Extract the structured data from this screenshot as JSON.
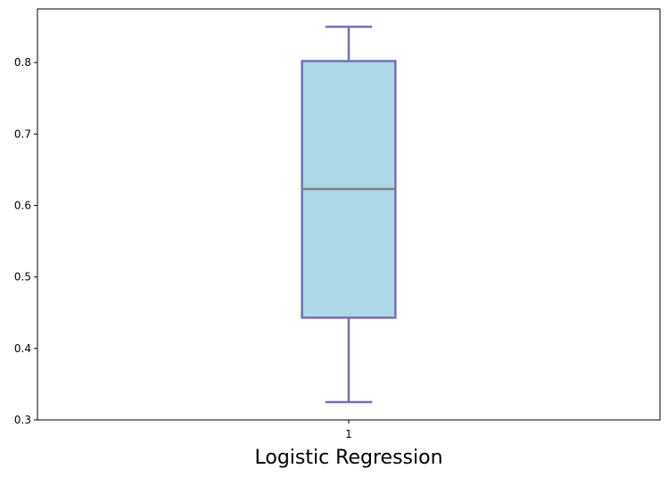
{
  "chart_data": {
    "type": "box",
    "title": "",
    "xlabel": "Logistic Regression",
    "ylabel": "",
    "categories": [
      "1"
    ],
    "ylim": [
      0.3,
      0.875
    ],
    "yticks": [
      0.3,
      0.4,
      0.5,
      0.6,
      0.7,
      0.8
    ],
    "ytick_labels": [
      "0.3",
      "0.4",
      "0.5",
      "0.6",
      "0.7",
      "0.8"
    ],
    "boxes": [
      {
        "label": "1",
        "whisker_low": 0.325,
        "q1": 0.443,
        "median": 0.623,
        "q3": 0.802,
        "whisker_high": 0.85
      }
    ],
    "colors": {
      "box_fill": "#add8e6",
      "box_edge": "#7570b3",
      "median": "#808080",
      "whisker": "#7570b3",
      "axis": "#000000"
    }
  }
}
